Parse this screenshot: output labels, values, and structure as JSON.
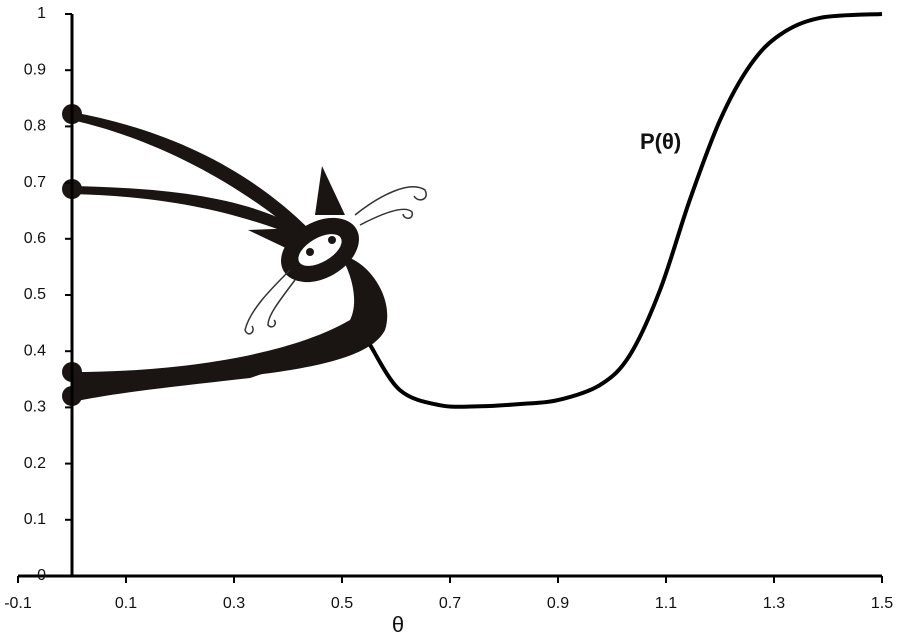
{
  "chart_data": {
    "type": "line",
    "annotation": "P(θ)",
    "x_label": "θ",
    "x": [
      0.552,
      0.607,
      0.681,
      0.756,
      0.83,
      0.9,
      0.978,
      1.033,
      1.089,
      1.144,
      1.2,
      1.256,
      1.311,
      1.385,
      1.5
    ],
    "values": [
      0.411,
      0.331,
      0.304,
      0.302,
      0.306,
      0.313,
      0.34,
      0.393,
      0.509,
      0.669,
      0.811,
      0.909,
      0.963,
      0.993,
      1.0
    ],
    "color": "#000000",
    "xlim": [
      -0.1,
      1.5
    ],
    "xticks": [
      -0.1,
      0.1,
      0.3,
      0.5,
      0.7,
      0.9,
      1.1,
      1.3,
      1.5
    ],
    "ylim": [
      0,
      1
    ],
    "yticks": [
      0,
      0.1,
      0.2,
      0.3,
      0.4,
      0.5,
      0.6,
      0.7,
      0.8,
      0.9,
      1
    ],
    "grid": false
  }
}
